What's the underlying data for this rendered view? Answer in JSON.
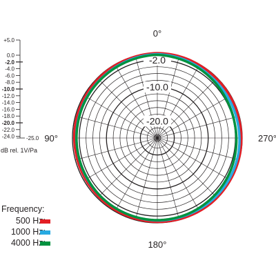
{
  "chart_data": {
    "type": "polar",
    "angle_labels": {
      "top": "0°",
      "left": "90°",
      "bottom": "180°",
      "right": "270°"
    },
    "ring_labels": [
      "-2.0",
      "-10.0",
      "-20.0"
    ],
    "r_range": [
      -25.0,
      0.0
    ],
    "scale": {
      "ticks": [
        "+5.0",
        "0.0",
        "-2.0",
        "-4.0",
        "-6.0",
        "-8.0",
        "-10.0",
        "-12.0",
        "-14.0",
        "-16.0",
        "-18.0",
        "-20.0",
        "-22.0",
        "-24.0",
        "-25.0"
      ],
      "bold_ticks": [
        "-2.0",
        "-10.0",
        "-20.0"
      ],
      "unit": "dB rel. 1V/Pa"
    },
    "series": [
      {
        "name": "500 Hz:",
        "color": "#e31e25",
        "values": [
          0.0,
          -0.2,
          -0.3,
          -0.5,
          -0.5,
          -0.6,
          -0.6,
          -0.5,
          -0.4,
          -0.3,
          -0.2,
          -0.1,
          -0.2,
          -0.2,
          -0.3,
          -0.3,
          -0.3,
          -0.1
        ]
      },
      {
        "name": "1000 Hz:",
        "color": "#27aae1",
        "values": [
          -0.3,
          -0.6,
          -0.9,
          -1.0,
          -1.1,
          -1.2,
          -1.1,
          -1.0,
          -0.9,
          -0.7,
          -0.7,
          -0.6,
          -0.6,
          -0.7,
          -0.9,
          -1.0,
          -1.0,
          -0.6
        ]
      },
      {
        "name": "4000 Hz:",
        "color": "#00923f",
        "values": [
          -0.5,
          -0.8,
          -1.0,
          -1.1,
          -1.2,
          -1.2,
          -1.2,
          -1.0,
          -0.9,
          -0.8,
          -0.9,
          -1.1,
          -1.3,
          -1.6,
          -1.8,
          -1.7,
          -1.3,
          -0.9
        ]
      }
    ]
  },
  "legend": {
    "title": "Frequency:",
    "items": [
      {
        "label": "500 Hz:",
        "color": "#e31e25"
      },
      {
        "label": "1000 Hz:",
        "color": "#27aae1"
      },
      {
        "label": "4000 Hz:",
        "color": "#00923f"
      }
    ]
  }
}
